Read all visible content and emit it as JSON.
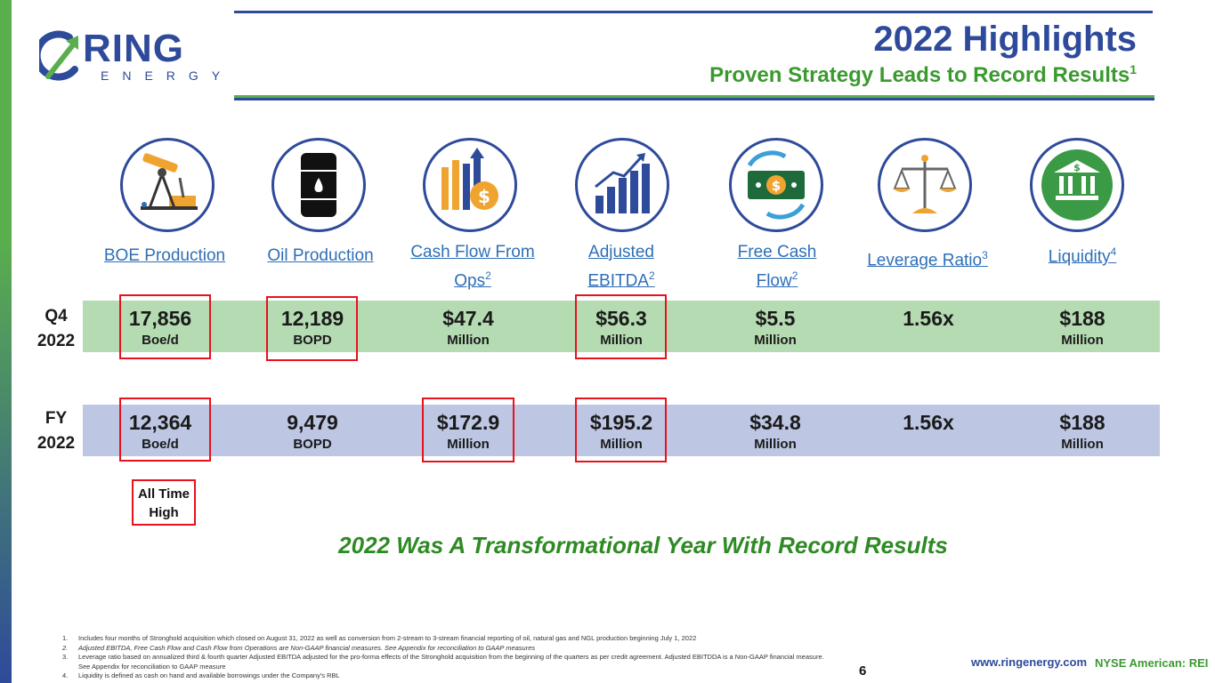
{
  "header": {
    "logo_word": "RING",
    "logo_sub": "ENERGY",
    "title": "2022 Highlights",
    "subtitle": "Proven Strategy Leads to Record Results",
    "subtitle_sup": "1"
  },
  "columns": [
    {
      "icon": "pumpjack-icon",
      "label": "BOE Production",
      "sup": ""
    },
    {
      "icon": "oil-barrel-icon",
      "label": "Oil Production",
      "sup": ""
    },
    {
      "icon": "cash-flow-chart-icon",
      "label": "Cash Flow From Ops",
      "sup": "2"
    },
    {
      "icon": "growth-bars-icon",
      "label": "Adjusted EBITDA",
      "sup": "2"
    },
    {
      "icon": "cash-cycle-icon",
      "label": "Free Cash Flow",
      "sup": "2"
    },
    {
      "icon": "scale-icon",
      "label": "Leverage Ratio",
      "sup": "3"
    },
    {
      "icon": "bank-icon",
      "label": "Liquidity",
      "sup": "4"
    }
  ],
  "rows": [
    {
      "label_line1": "Q4",
      "label_line2": "2022",
      "values": [
        {
          "big": "17,856",
          "unit": "Boe/d"
        },
        {
          "big": "12,189",
          "unit": "BOPD"
        },
        {
          "big": "$47.4",
          "unit": "Million"
        },
        {
          "big": "$56.3",
          "unit": "Million"
        },
        {
          "big": "$5.5",
          "unit": "Million"
        },
        {
          "big": "1.56x",
          "unit": ""
        },
        {
          "big": "$188",
          "unit": "Million"
        }
      ]
    },
    {
      "label_line1": "FY",
      "label_line2": "2022",
      "values": [
        {
          "big": "12,364",
          "unit": "Boe/d"
        },
        {
          "big": "9,479",
          "unit": "BOPD"
        },
        {
          "big": "$172.9",
          "unit": "Million"
        },
        {
          "big": "$195.2",
          "unit": "Million"
        },
        {
          "big": "$34.8",
          "unit": "Million"
        },
        {
          "big": "1.56x",
          "unit": ""
        },
        {
          "big": "$188",
          "unit": "Million"
        }
      ]
    }
  ],
  "callout": {
    "line1": "All Time",
    "line2": "High"
  },
  "tagline": "2022 Was A Transformational Year With Record Results",
  "footnotes": [
    {
      "n": "1.",
      "text": "Includes four months of Stronghold acquisition which closed on August 31, 2022 as well as conversion from 2-stream to 3-stream financial reporting of oil, natural gas and NGL production beginning July 1, 2022"
    },
    {
      "n": "2.",
      "text": "Adjusted EBITDA, Free Cash Flow and Cash Flow from Operations are Non-GAAP financial measures. See Appendix for reconciliation to GAAP measures"
    },
    {
      "n": "3.",
      "text": "Leverage ratio based on annualized third & fourth quarter Adjusted EBITDA adjusted for the pro-forma effects of the Stronghold acquisition from the beginning of the quarters as per credit agreement. Adjusted EBITDDA is a Non-GAAP financial measure. See Appendix for reconciliation to GAAP measure"
    },
    {
      "n": "4.",
      "text": "Liquidity is defined as cash on hand and available borrowings under the Company's RBL"
    }
  ],
  "page_number": "6",
  "website": "www.ringenergy.com",
  "exchange": "NYSE American: REI",
  "colors": {
    "navy": "#2e4a9a",
    "green": "#3b9a2f",
    "q4_band": "#b5dbb2",
    "fy_band": "#bdc6e2",
    "highlight": "#e8111c"
  }
}
